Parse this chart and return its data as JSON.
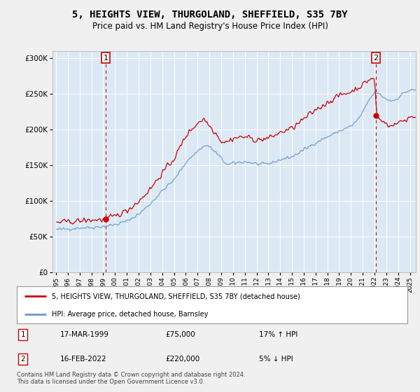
{
  "title": "5, HEIGHTS VIEW, THURGOLAND, SHEFFIELD, S35 7BY",
  "subtitle": "Price paid vs. HM Land Registry's House Price Index (HPI)",
  "legend_line1": "5, HEIGHTS VIEW, THURGOLAND, SHEFFIELD, S35 7BY (detached house)",
  "legend_line2": "HPI: Average price, detached house, Barnsley",
  "annotation1_date": "17-MAR-1999",
  "annotation1_price": "£75,000",
  "annotation1_hpi": "17% ↑ HPI",
  "annotation2_date": "16-FEB-2022",
  "annotation2_price": "£220,000",
  "annotation2_hpi": "5% ↓ HPI",
  "footer": "Contains HM Land Registry data © Crown copyright and database right 2024.\nThis data is licensed under the Open Government Licence v3.0.",
  "fig_bg_color": "#f0f0f0",
  "plot_bg_color": "#dce9f5",
  "red_color": "#cc0000",
  "blue_color": "#6699cc",
  "transaction1_x": 1999.21,
  "transaction1_y": 75000,
  "transaction2_x": 2022.12,
  "transaction2_y": 220000,
  "ylim": [
    0,
    310000
  ],
  "xlim_start": 1994.7,
  "xlim_end": 2025.5
}
